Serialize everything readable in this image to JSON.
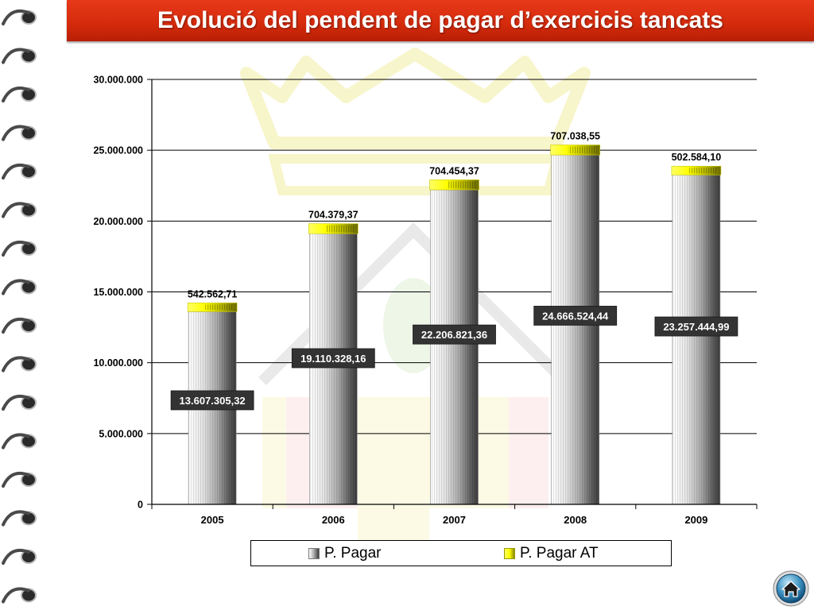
{
  "slide": {
    "title": "Evolució del pendent de pagar d’exercicis tancats"
  },
  "colors": {
    "title_bar": "#d42a0c",
    "bar_gray": "#9a9a9a",
    "bar_yellow": "#ffff00",
    "label_box": "#333333"
  },
  "icons": {
    "home": "home-icon",
    "binding": "spiral-binding-icon",
    "watermark": "coat-of-arms-watermark"
  },
  "chart_data": {
    "type": "bar",
    "stacked": true,
    "categories": [
      "2005",
      "2006",
      "2007",
      "2008",
      "2009"
    ],
    "series": [
      {
        "name": "P. Pagar",
        "values": [
          13607305.32,
          19110328.16,
          22206821.36,
          24666524.44,
          23257444.99
        ],
        "labels": [
          "13.607.305,32",
          "19.110.328,16",
          "22.206.821,36",
          "24.666.524,44",
          "23.257.444,99"
        ]
      },
      {
        "name": "P. Pagar AT",
        "values": [
          542562.71,
          704379.37,
          704454.37,
          707038.55,
          502584.1
        ],
        "labels": [
          "542.562,71",
          "704.379,37",
          "704.454,37",
          "707.038,55",
          "502.584,10"
        ]
      }
    ],
    "y_ticks": [
      "0",
      "5.000.000",
      "10.000.000",
      "15.000.000",
      "20.000.000",
      "25.000.000",
      "30.000.000"
    ],
    "ylim": [
      0,
      30000000
    ],
    "grid": true,
    "legend_position": "bottom"
  }
}
